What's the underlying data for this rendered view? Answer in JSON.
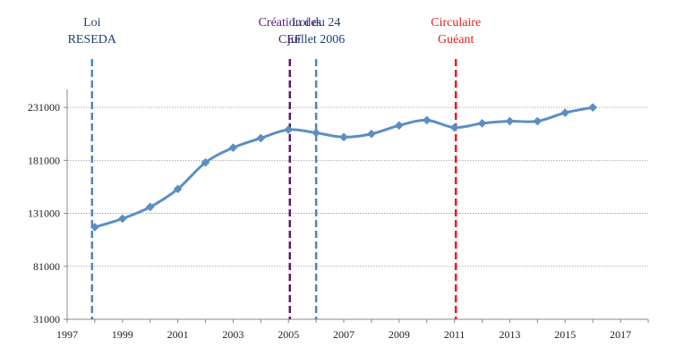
{
  "chart_data": {
    "type": "line",
    "x": [
      1998,
      1999,
      2000,
      2001,
      2002,
      2003,
      2004,
      2005,
      2006,
      2007,
      2008,
      2009,
      2010,
      2011,
      2012,
      2013,
      2014,
      2015,
      2016
    ],
    "series": [
      {
        "values": [
          118000,
          126000,
          137000,
          154000,
          179000,
          193000,
          202000,
          210000,
          207000,
          203000,
          206000,
          214000,
          219000,
          212000,
          216000,
          218000,
          218000,
          226000,
          231000
        ],
        "color": "#5b8fc4",
        "marker": "diamond"
      }
    ],
    "xlim": [
      1997,
      2018
    ],
    "ylim": [
      31000,
      248000
    ],
    "x_ticks": [
      "1997",
      "1999",
      "2001",
      "2003",
      "2005",
      "2007",
      "2009",
      "2011",
      "2013",
      "2015",
      "2017"
    ],
    "y_ticks": [
      "231000",
      "181000",
      "131000",
      "81000",
      "31000"
    ],
    "grid": "horizontal dotted",
    "annotations": [
      {
        "x": 1997.9,
        "lines": [
          "Loi",
          "RESEDA"
        ],
        "color": "#1f3c6e",
        "line_color": "#4a86c0"
      },
      {
        "x": 2005.05,
        "lines": [
          "Création des",
          "CEF"
        ],
        "color": "#5a1a6a",
        "line_color": "#5a1a6a"
      },
      {
        "x": 2006.0,
        "lines": [
          "Loi du 24",
          "juillet 2006"
        ],
        "color": "#1f3c6e",
        "line_color": "#4a86c0"
      },
      {
        "x": 2011.05,
        "lines": [
          "Circulaire",
          "Guéant"
        ],
        "color": "#e02020",
        "line_color": "#e02020"
      }
    ]
  }
}
